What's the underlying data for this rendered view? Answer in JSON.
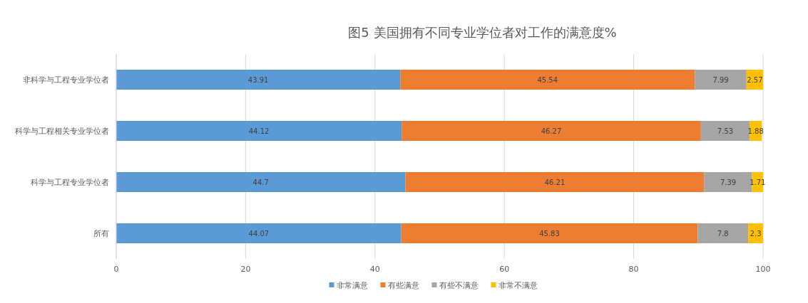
{
  "chart_data": {
    "type": "bar",
    "orientation": "horizontal",
    "stacked": true,
    "title": "图5 美国拥有不同专业学位者对工作的满意度%",
    "categories": [
      "非科学与工程专业学位者",
      "科学与工程相关专业学位者",
      "科学与工程专业学位者",
      "所有"
    ],
    "series": [
      {
        "name": "非常满意",
        "color": "#5b9bd5",
        "values": [
          43.91,
          44.12,
          44.7,
          44.07
        ]
      },
      {
        "name": "有些满意",
        "color": "#ed7d31",
        "values": [
          45.54,
          46.27,
          46.21,
          45.83
        ]
      },
      {
        "name": "有些不满意",
        "color": "#a5a5a5",
        "values": [
          7.99,
          7.53,
          7.39,
          7.8
        ]
      },
      {
        "name": "非常不满意",
        "color": "#ffc000",
        "values": [
          2.57,
          1.88,
          1.71,
          2.3
        ]
      }
    ],
    "xlim": [
      0,
      100
    ],
    "xticks": [
      0,
      20,
      40,
      60,
      80,
      100
    ],
    "grid": "x",
    "legend": "bottom",
    "data_labels": true
  }
}
